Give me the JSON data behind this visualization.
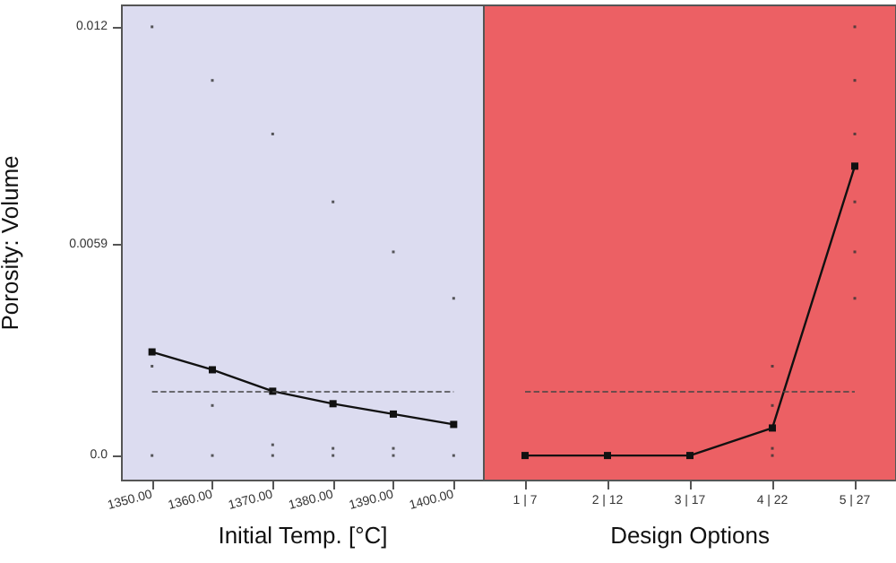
{
  "chart_data": [
    {
      "type": "line",
      "xlabel": "Initial Temp. [°C]",
      "ylabel": "Porosity: Volume",
      "categories": [
        "1350.00",
        "1360.00",
        "1370.00",
        "1380.00",
        "1390.00",
        "1400.00"
      ],
      "ylim": [
        -0.0007,
        0.0126
      ],
      "yticks": [
        {
          "value": 0,
          "label": "0.0"
        },
        0.0059,
        0.012
      ],
      "grid": false,
      "marker": "square",
      "line_style": "solid",
      "series": [
        {
          "color": "#111111",
          "values": [
            0.0029,
            0.0024,
            0.0018,
            0.00145,
            0.00116,
            0.00087
          ]
        },
        {
          "type": "scatter",
          "color": "#333333",
          "x": [
            "1350.00",
            "1350.00",
            "1350.00",
            "1360.00",
            "1360.00",
            "1360.00",
            "1370.00",
            "1370.00",
            "1370.00",
            "1380.00",
            "1380.00",
            "1380.00",
            "1390.00",
            "1390.00",
            "1390.00",
            "1400.00",
            "1400.00"
          ],
          "values": [
            0.012,
            0.0025,
            0,
            0.0105,
            0.0014,
            0,
            0.009,
            0.0003,
            0,
            0.0071,
            0.0002,
            0,
            0.0057,
            0.0002,
            0,
            0.0044,
            0
          ]
        }
      ],
      "ref_lines": [
        {
          "axis": "y",
          "value": 0.0018,
          "color": "#444444",
          "line_style": "dashed"
        }
      ]
    },
    {
      "type": "line",
      "xlabel": "Design Options",
      "categories": [
        "1 | 7",
        "2 | 12",
        "3 | 17",
        "4 | 22",
        "5 | 27"
      ],
      "ylim": [
        -0.0007,
        0.0126
      ],
      "tick_labels": "x",
      "grid": false,
      "marker": "square",
      "line_style": "solid",
      "series": [
        {
          "color": "#111111",
          "values": [
            0,
            0,
            0,
            0.00077,
            0.0081
          ]
        },
        {
          "type": "scatter",
          "color": "#333333",
          "x": [
            "4 | 22",
            "4 | 22",
            "4 | 22",
            "4 | 22",
            "5 | 27",
            "5 | 27",
            "5 | 27",
            "5 | 27",
            "5 | 27",
            "5 | 27"
          ],
          "values": [
            0.0025,
            0.0014,
            0.0002,
            0,
            0.012,
            0.0105,
            0.009,
            0.0071,
            0.0057,
            0.0044
          ]
        }
      ],
      "ref_lines": [
        {
          "axis": "y",
          "value": 0.0018,
          "color": "#444444",
          "line_style": "dashed"
        }
      ]
    }
  ]
}
